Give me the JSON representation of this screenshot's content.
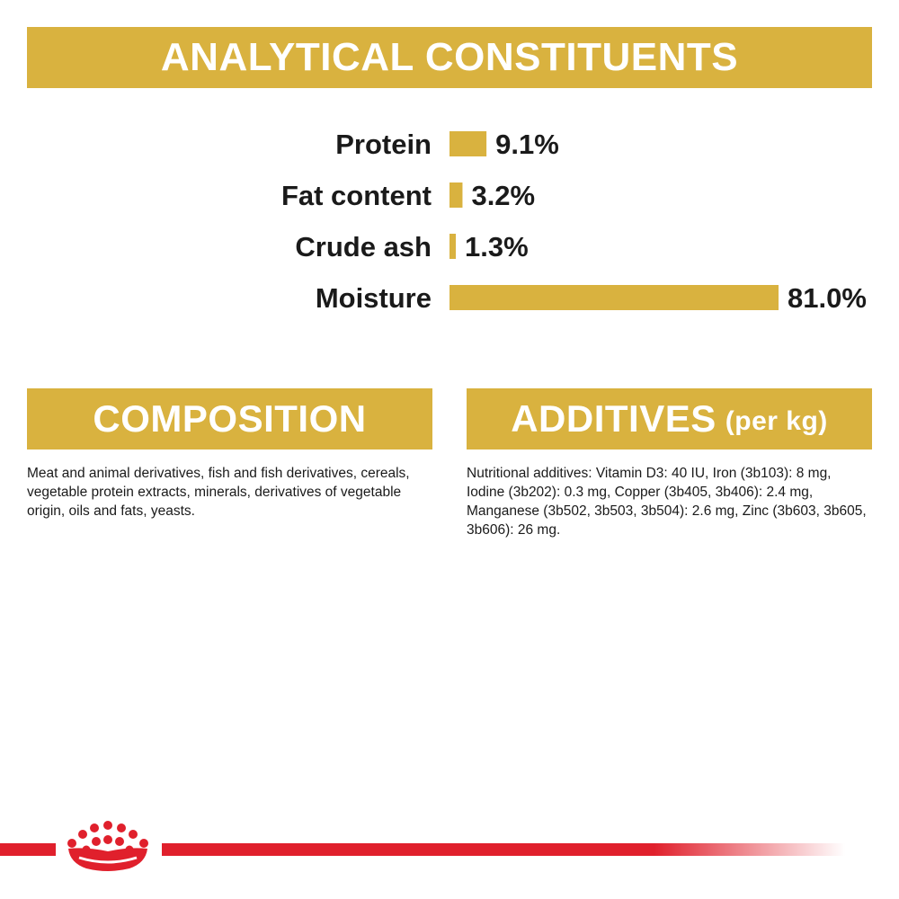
{
  "colors": {
    "gold": "#D9B23F",
    "brand_red": "#E0202C",
    "text": "#1a1a1a",
    "banner_text": "#ffffff"
  },
  "headers": {
    "analytical": "ANALYTICAL CONSTITUENTS",
    "composition": "COMPOSITION",
    "additives": "ADDITIVES",
    "additives_suffix": "(per kg)"
  },
  "chart_data": {
    "type": "bar",
    "orientation": "horizontal",
    "title": "ANALYTICAL CONSTITUENTS",
    "categories": [
      "Protein",
      "Fat content",
      "Crude ash",
      "Moisture"
    ],
    "values": [
      9.1,
      3.2,
      1.3,
      81.0
    ],
    "value_labels": [
      "9.1%",
      "3.2%",
      "1.3%",
      "81.0%"
    ],
    "unit": "%",
    "grid": false,
    "legend": "none"
  },
  "composition": {
    "text": "Meat and animal derivatives, fish and fish derivatives, cereals, vegetable protein extracts, minerals, derivatives of vegetable origin, oils and fats, yeasts."
  },
  "additives": {
    "text": "Nutritional additives: Vitamin D3: 40 IU, Iron (3b103): 8 mg, Iodine (3b202): 0.3 mg, Copper (3b405, 3b406): 2.4 mg, Manganese (3b502, 3b503, 3b504): 2.6 mg, Zinc (3b603, 3b605, 3b606): 26 mg."
  },
  "footer": {
    "logo_icon": "royal-crown-icon"
  }
}
